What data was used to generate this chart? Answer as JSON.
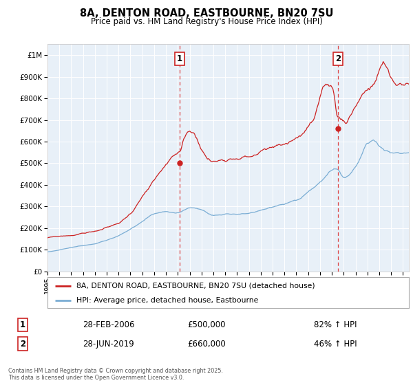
{
  "title": "8A, DENTON ROAD, EASTBOURNE, BN20 7SU",
  "subtitle": "Price paid vs. HM Land Registry's House Price Index (HPI)",
  "ylabel_ticks": [
    "£0",
    "£100K",
    "£200K",
    "£300K",
    "£400K",
    "£500K",
    "£600K",
    "£700K",
    "£800K",
    "£900K",
    "£1M"
  ],
  "ytick_values": [
    0,
    100000,
    200000,
    300000,
    400000,
    500000,
    600000,
    700000,
    800000,
    900000,
    1000000
  ],
  "ylim": [
    0,
    1050000
  ],
  "plot_bg": "#e8f0f8",
  "line_color_hpi": "#7aadd4",
  "line_color_property": "#cc2222",
  "transaction1_x": 2006.15,
  "transaction1_y": 500000,
  "transaction2_x": 2019.5,
  "transaction2_y": 660000,
  "legend_property": "8A, DENTON ROAD, EASTBOURNE, BN20 7SU (detached house)",
  "legend_hpi": "HPI: Average price, detached house, Eastbourne",
  "note1_date": "28-FEB-2006",
  "note1_price": "£500,000",
  "note1_hpi": "82% ↑ HPI",
  "note2_date": "28-JUN-2019",
  "note2_price": "£660,000",
  "note2_hpi": "46% ↑ HPI",
  "footer": "Contains HM Land Registry data © Crown copyright and database right 2025.\nThis data is licensed under the Open Government Licence v3.0.",
  "xmin": 1995,
  "xmax": 2025.5
}
